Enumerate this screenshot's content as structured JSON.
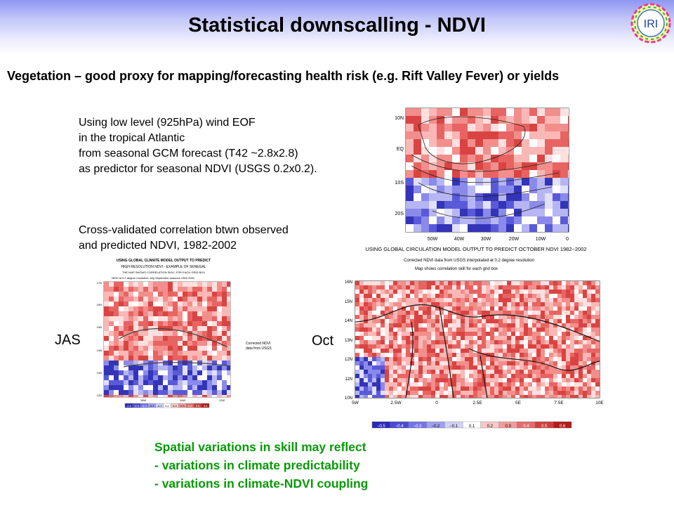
{
  "title": "Statistical downscalling - NDVI",
  "logo_text": "IRI",
  "subtitle": "Vegetation – good proxy for mapping/forecasting health risk (e.g. Rift Valley Fever) or yields",
  "method_lines": [
    "Using low level (925hPa) wind EOF",
    "in the tropical Atlantic",
    "from seasonal GCM forecast (T42 ~2.8x2.8)",
    "as predictor for  seasonal NDVI (USGS 0.2x0.2)."
  ],
  "correlation_lines": [
    "Cross-validated correlation btwn observed",
    "and predicted NDVI, 1982-2002"
  ],
  "eof_map": {
    "y_labels": [
      "10N",
      "EQ",
      "10S",
      "20S"
    ],
    "x_labels": [
      "50W",
      "40W",
      "30W",
      "20W",
      "10W",
      "0"
    ]
  },
  "jas_map": {
    "label": "JAS",
    "header": [
      "USING GLOBAL CLIMATE MODEL OUTPUT TO PREDICT",
      "HIGH RESOLUTION NDVI - EXAMPLE OF SENEGAL",
      "THE MAP SHOWS CORRELATION SKILL FOR EACH GRID BOX",
      "NDVI at 0.2 degree resolution July-September seasons 1982-2002"
    ],
    "side_note": [
      "Corrected NDVI",
      "data from USGS"
    ],
    "y_labels": [
      "17N",
      "16N",
      "15N",
      "14N",
      "13N",
      "12N"
    ],
    "x_labels": [
      "16W",
      "14W",
      "12W"
    ],
    "colorbar": [
      "-0.5",
      "-0.4",
      "-0.3",
      "-0.2",
      "-0.1",
      "0.1",
      "0.2",
      "0.3",
      "0.4",
      "0.5",
      "0.6"
    ]
  },
  "oct_map": {
    "label": "Oct",
    "header": [
      "USING GLOBAL CIRCULATION MODEL OUTPUT TO PREDICT OCTOBER NDVI 1982−2002",
      "Corrected NDVI data from USGS interpolated at 0.2 degree resolution",
      "Map shows correlation skill for each grid box"
    ],
    "y_labels": [
      "16N",
      "15N",
      "14N",
      "13N",
      "12N",
      "11N",
      "10N"
    ],
    "x_labels": [
      "5W",
      "2.5W",
      "0",
      "2.5E",
      "5E",
      "7.5E",
      "10E"
    ],
    "colorbar": [
      "−0.5",
      "−0.4",
      "−0.3",
      "−0.2",
      "−0.1",
      "0.1",
      "0.2",
      "0.3",
      "0.4",
      "0.5",
      "0.6"
    ]
  },
  "conclusion_lines": [
    "Spatial variations in skill may reflect",
    "- variations in climate predictability",
    "- variations in climate-NDVI coupling"
  ]
}
